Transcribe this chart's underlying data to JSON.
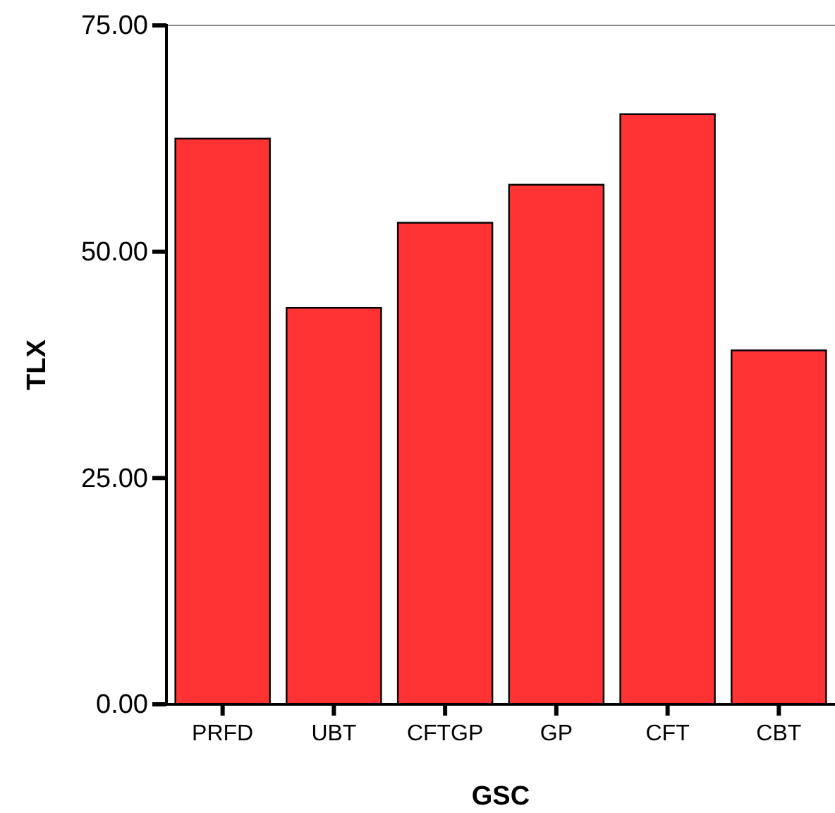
{
  "chart_data": {
    "type": "bar",
    "xlabel": "GSC",
    "ylabel": "TLX",
    "categories": [
      "PRFD",
      "UBT",
      "CFTGP",
      "GP",
      "CFT",
      "CBT"
    ],
    "values": [
      62.5,
      43.8,
      53.2,
      57.4,
      65.2,
      39.1
    ],
    "color": "#ff3333",
    "ylim": [
      0,
      75
    ],
    "yticks": [
      {
        "value": 0,
        "label": "0.00"
      },
      {
        "value": 25,
        "label": "25.00"
      },
      {
        "value": 50,
        "label": "50.00"
      },
      {
        "value": 75,
        "label": "75.00"
      }
    ],
    "grid": false
  }
}
